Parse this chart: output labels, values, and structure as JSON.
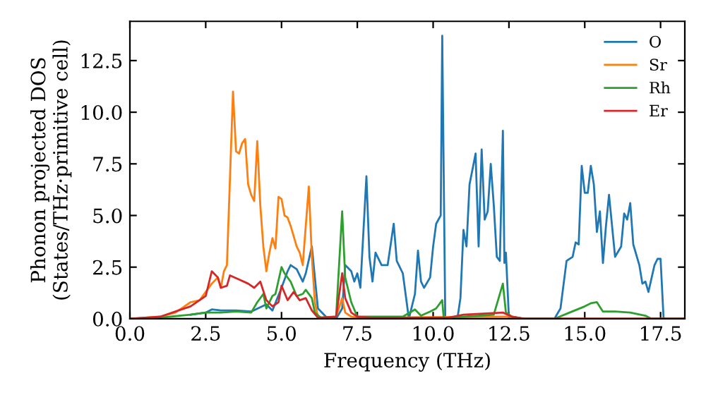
{
  "chart_data": {
    "type": "line",
    "xlabel": "Frequency (THz)",
    "ylabel": "Phonon projected DOS\n(States/THz·primitive cell)",
    "xlim": [
      0,
      18.3
    ],
    "ylim": [
      0,
      14.4
    ],
    "xticks": [
      {
        "value": 0,
        "label": "0.0"
      },
      {
        "value": 2.5,
        "label": "2.5"
      },
      {
        "value": 5,
        "label": "5.0"
      },
      {
        "value": 7.5,
        "label": "7.5"
      },
      {
        "value": 10,
        "label": "10.0"
      },
      {
        "value": 12.5,
        "label": "12.5"
      },
      {
        "value": 15,
        "label": "15.0"
      },
      {
        "value": 17.5,
        "label": "17.5"
      }
    ],
    "yticks": [
      {
        "value": 0,
        "label": "0.0"
      },
      {
        "value": 2.5,
        "label": "2.5"
      },
      {
        "value": 5,
        "label": "5.0"
      },
      {
        "value": 7.5,
        "label": "7.5"
      },
      {
        "value": 10,
        "label": "10.0"
      },
      {
        "value": 12.5,
        "label": "12.5"
      }
    ],
    "grid": false,
    "legend": "top right",
    "marker": "none",
    "line_style": "solid",
    "series": [
      {
        "name": "O",
        "color": "#1f77b4",
        "x": [
          2,
          2.5,
          2.7,
          3,
          3.5,
          4,
          4.5,
          4.7,
          5,
          5.2,
          5.3,
          5.5,
          5.7,
          5.8,
          6,
          6.1,
          6.2,
          6.5,
          6.8,
          7,
          7.1,
          7.3,
          7.4,
          7.5,
          7.6,
          7.8,
          7.9,
          8,
          8.1,
          8.3,
          8.5,
          8.7,
          8.8,
          9,
          9.2,
          9.4,
          9.5,
          9.6,
          9.7,
          9.9,
          10,
          10.1,
          10.25,
          10.3,
          10.4,
          10.8,
          10.9,
          11,
          11.1,
          11.2,
          11.4,
          11.5,
          11.6,
          11.7,
          11.8,
          11.9,
          12,
          12.1,
          12.2,
          12.3,
          12.35,
          12.4,
          12.5,
          14,
          14.2,
          14.4,
          14.6,
          14.7,
          14.8,
          14.9,
          15,
          15.1,
          15.2,
          15.3,
          15.4,
          15.5,
          15.6,
          15.7,
          15.8,
          15.9,
          16,
          16.2,
          16.3,
          16.4,
          16.5,
          16.6,
          16.8,
          16.9,
          17,
          17.1,
          17.3,
          17.4,
          17.5,
          17.6,
          18.3
        ],
        "values": [
          0.2,
          0.3,
          0.45,
          0.4,
          0.4,
          0.35,
          0.7,
          0.4,
          1.5,
          2.3,
          2.6,
          2.4,
          1.8,
          2.2,
          3.5,
          2.0,
          0.5,
          0.05,
          0,
          0.5,
          2.6,
          2.3,
          1.8,
          2.2,
          1.5,
          6.9,
          3.0,
          1.8,
          3.2,
          2.6,
          2.6,
          4.6,
          2.8,
          2.2,
          0,
          1.2,
          3.3,
          1.8,
          1.5,
          2.0,
          3.5,
          4.6,
          5.0,
          13.7,
          0,
          0,
          1.0,
          4.3,
          3.5,
          6.5,
          8.0,
          3.5,
          8.2,
          4.8,
          5.2,
          7.5,
          5.5,
          3.0,
          2.8,
          9.1,
          2.7,
          3.2,
          0,
          0,
          0.5,
          2.8,
          3.0,
          3.7,
          3.6,
          7.4,
          6.1,
          6.1,
          7.4,
          6.5,
          4.2,
          5.2,
          2.7,
          4.5,
          6.0,
          4.5,
          3.0,
          3.5,
          5.1,
          4.8,
          5.6,
          3.6,
          2.6,
          1.7,
          1.8,
          1.3,
          2.6,
          2.9,
          2.9,
          0,
          0
        ]
      },
      {
        "name": "Sr",
        "color": "#ff7f0e",
        "x": [
          0,
          1,
          1.5,
          2,
          2.3,
          2.5,
          2.7,
          2.9,
          3,
          3.1,
          3.2,
          3.4,
          3.5,
          3.6,
          3.7,
          3.8,
          3.9,
          4,
          4.1,
          4.2,
          4.3,
          4.4,
          4.5,
          4.6,
          4.7,
          4.8,
          4.9,
          5,
          5.1,
          5.2,
          5.3,
          5.5,
          5.6,
          5.7,
          5.9,
          6,
          6.1,
          6.2,
          6.5,
          6.8,
          7,
          7.1,
          7.3,
          7.5,
          12.5,
          13,
          18.3
        ],
        "values": [
          0,
          0.1,
          0.3,
          0.8,
          0.9,
          1.3,
          1.7,
          2.0,
          1.5,
          2.3,
          2.6,
          11.0,
          8.1,
          8.0,
          8.5,
          8.7,
          6.5,
          6.0,
          5.7,
          8.6,
          5.5,
          3.5,
          2.3,
          3.2,
          3.9,
          3.4,
          5.9,
          5.8,
          5.0,
          4.9,
          4.5,
          3.5,
          3.2,
          2.6,
          6.4,
          3.0,
          0.8,
          0.1,
          0,
          0.1,
          1.0,
          0.3,
          0.1,
          0.05,
          0.1,
          0,
          0
        ]
      },
      {
        "name": "Rh",
        "color": "#2ca02c",
        "x": [
          0,
          1,
          2,
          2.5,
          3,
          3.5,
          4,
          4.2,
          4.4,
          4.5,
          4.7,
          4.8,
          5,
          5.1,
          5.3,
          5.5,
          5.7,
          5.8,
          6,
          6.1,
          6.3,
          6.8,
          7,
          7.1,
          7.3,
          7.5,
          9,
          9.4,
          9.6,
          9.9,
          10.1,
          10.3,
          10.35,
          11,
          12,
          12.3,
          12.4,
          12.6,
          13,
          14,
          14.5,
          15,
          15.2,
          15.4,
          15.6,
          16,
          16.5,
          17,
          17.2,
          18.3
        ],
        "values": [
          0,
          0.05,
          0.2,
          0.3,
          0.3,
          0.35,
          0.3,
          0.8,
          1.2,
          0.5,
          1.1,
          1.2,
          2.5,
          2.2,
          1.8,
          1.1,
          1.2,
          1.4,
          1.0,
          0.3,
          0.05,
          0.1,
          5.2,
          2.0,
          0.8,
          0.1,
          0.1,
          0.45,
          0.15,
          0.35,
          0.5,
          0.9,
          0,
          0.1,
          0.2,
          1.7,
          0.3,
          0.1,
          0,
          0,
          0.3,
          0.6,
          0.75,
          0.8,
          0.35,
          0.35,
          0.3,
          0.15,
          0,
          0
        ]
      },
      {
        "name": "Er",
        "color": "#d62728",
        "x": [
          0,
          1,
          2,
          2.5,
          2.7,
          2.9,
          3,
          3.2,
          3.3,
          3.6,
          3.9,
          4.1,
          4.3,
          4.5,
          4.7,
          4.9,
          5,
          5.2,
          5.4,
          5.6,
          5.8,
          6,
          6.2,
          6.8,
          7,
          7.1,
          7.3,
          7.5,
          8,
          10.5,
          11,
          12.3,
          12.6,
          13,
          18.3
        ],
        "values": [
          0,
          0.1,
          0.6,
          1.1,
          2.3,
          2.0,
          1.5,
          1.6,
          2.1,
          1.9,
          1.7,
          1.5,
          1.8,
          0.9,
          0.6,
          0.8,
          1.6,
          0.9,
          1.3,
          0.9,
          1.0,
          0.4,
          0.05,
          0.1,
          2.2,
          1.0,
          0.3,
          0.1,
          0.05,
          0.05,
          0.2,
          0.3,
          0.1,
          0,
          0
        ]
      }
    ]
  }
}
